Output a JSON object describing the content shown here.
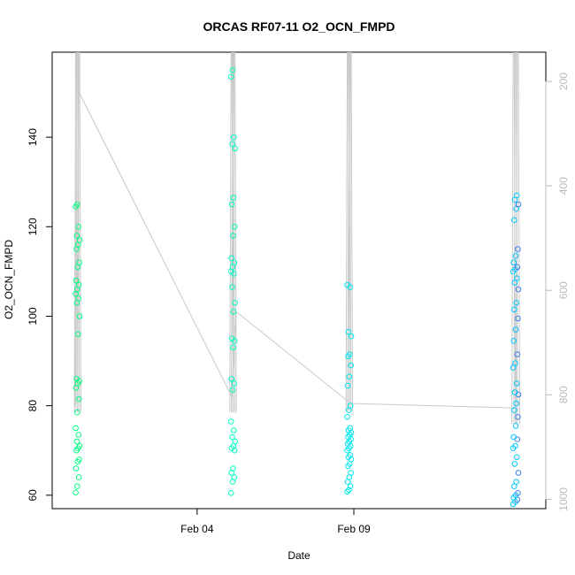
{
  "chart_data": {
    "type": "scatter",
    "title": "ORCAS RF07-11 O2_OCN_FMPD",
    "xlabel": "Date",
    "ylabel": "O2_OCN_FMPD",
    "xlim": [
      "2016-01-30T09:00",
      "2016-02-15T03:00"
    ],
    "ylim": [
      57,
      159
    ],
    "x_ticks": [
      {
        "value": "2016-02-04",
        "label": "Feb 04"
      },
      {
        "value": "2016-02-09",
        "label": "Feb 09"
      }
    ],
    "y_ticks": [
      60,
      80,
      100,
      120,
      140
    ],
    "right_axis": {
      "label": "",
      "reversed": true,
      "range": [
        1018,
        144
      ],
      "ticks": [
        200,
        400,
        600,
        800,
        1000
      ],
      "color": "#bbbbbb"
    },
    "grid": false,
    "legend": "none",
    "colors": {
      "line": "#c8c8c8",
      "flight_colors": [
        "#00ff80",
        "#00ffc0",
        "#00e8ee",
        "#00c8ff",
        "#3c80ee"
      ]
    },
    "flights": [
      {
        "x_range": [
          "2016-01-31T03:00",
          "2016-01-31T06:00"
        ],
        "y_values": [
          60.6,
          62,
          64,
          66,
          67.5,
          68,
          70,
          70.5,
          71,
          72,
          73.5,
          75,
          78.5,
          81.5,
          84,
          85,
          85.5,
          86,
          96,
          100,
          103,
          104,
          105,
          106,
          107,
          108,
          111,
          112,
          115,
          116,
          117,
          118,
          120,
          124.5,
          125
        ]
      },
      {
        "x_range": [
          "2016-02-05T02:00",
          "2016-02-05T05:00"
        ],
        "y_values": [
          60.5,
          63,
          64,
          65,
          66,
          70,
          70.5,
          71,
          72,
          73,
          74.5,
          76.5,
          83.5,
          85,
          86,
          93,
          94.5,
          95,
          101,
          103,
          106.5,
          109.5,
          110,
          111,
          112,
          113,
          118,
          120,
          125,
          126.5,
          137.5,
          138.5,
          140,
          153.5,
          155
        ]
      },
      {
        "x_range": [
          "2016-02-08T19:00",
          "2016-02-08T22:00"
        ],
        "y_values": [
          60.8,
          61.2,
          62,
          63,
          64,
          65,
          66.5,
          67,
          68,
          68.5,
          69,
          70,
          70.5,
          71,
          71.5,
          72,
          72.5,
          73,
          73.5,
          74,
          74.5,
          75,
          77.5,
          79,
          80,
          84.5,
          86.5,
          89,
          91,
          91.5,
          95.5,
          96.5,
          106.5,
          107
        ]
      },
      {
        "x_range": [
          "2016-02-14T02:00",
          "2016-02-14T06:00"
        ],
        "y_values": [
          58,
          58.5,
          59,
          59.5,
          60,
          60.5,
          62,
          63,
          65,
          67,
          68.5,
          70.5,
          71,
          72.5,
          73,
          75.5,
          77.5,
          79,
          80.5,
          82.5,
          83,
          85,
          88.5,
          89.5,
          91.5,
          94.5,
          97,
          99.5,
          101.5,
          103,
          106,
          107.5,
          108.5,
          110,
          110.5,
          111,
          112,
          113.5,
          115,
          121.5,
          124,
          125,
          126,
          127
        ]
      }
    ],
    "series": [
      {
        "x": [
          "2016-01-31T02:30",
          "2016-01-31T04:00",
          "2016-02-05T02:30",
          "2016-02-05T06:00",
          "2016-02-08T19:30",
          "2016-02-08T22:00",
          "2016-02-14T04:00"
        ],
        "values": [
          80,
          151,
          82,
          101,
          81,
          80.5,
          79.5
        ]
      }
    ]
  }
}
